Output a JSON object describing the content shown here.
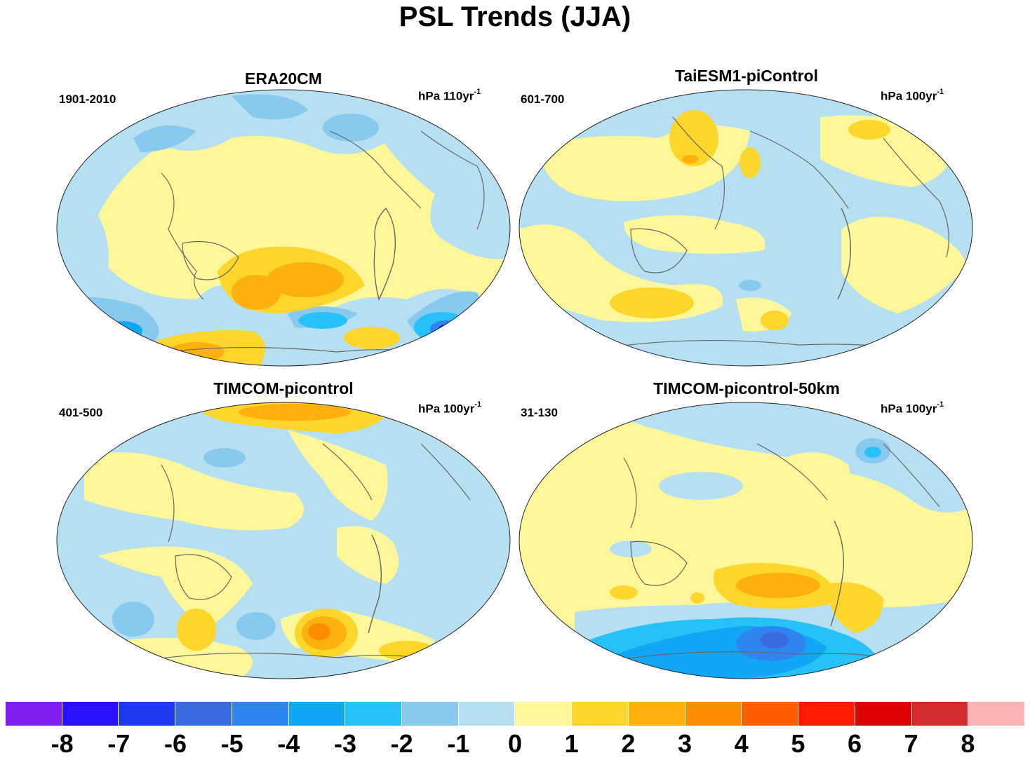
{
  "title": "PSL Trends (JJA)",
  "panels": [
    {
      "title": "ERA20CM",
      "period": "1901-2010",
      "units_prefix": "hPa 110yr",
      "units_exp": "-1"
    },
    {
      "title": "TaiESM1-piControl",
      "period": "601-700",
      "units_prefix": "hPa 100yr",
      "units_exp": "-1"
    },
    {
      "title": "TIMCOM-picontrol",
      "period": "401-500",
      "units_prefix": "hPa 100yr",
      "units_exp": "-1"
    },
    {
      "title": "TIMCOM-picontrol-50km",
      "period": "31-130",
      "units_prefix": "hPa 100yr",
      "units_exp": "-1"
    }
  ],
  "colorbar": {
    "colors": [
      "#7f1ff0",
      "#2a10ff",
      "#1e3aef",
      "#3a6ae0",
      "#2f85f0",
      "#12a6f5",
      "#26c2f7",
      "#88c9ef",
      "#b6e0f2",
      "#fef79a",
      "#fed52a",
      "#fdb10e",
      "#fe8c00",
      "#ff5e00",
      "#ff1c00",
      "#dc0000",
      "#d22b2b",
      "#ffb5b5"
    ],
    "labels": [
      "-8",
      "-7",
      "-6",
      "-5",
      "-4",
      "-3",
      "-2",
      "-1",
      "0",
      "1",
      "2",
      "3",
      "4",
      "5",
      "6",
      "7",
      "8"
    ]
  }
}
